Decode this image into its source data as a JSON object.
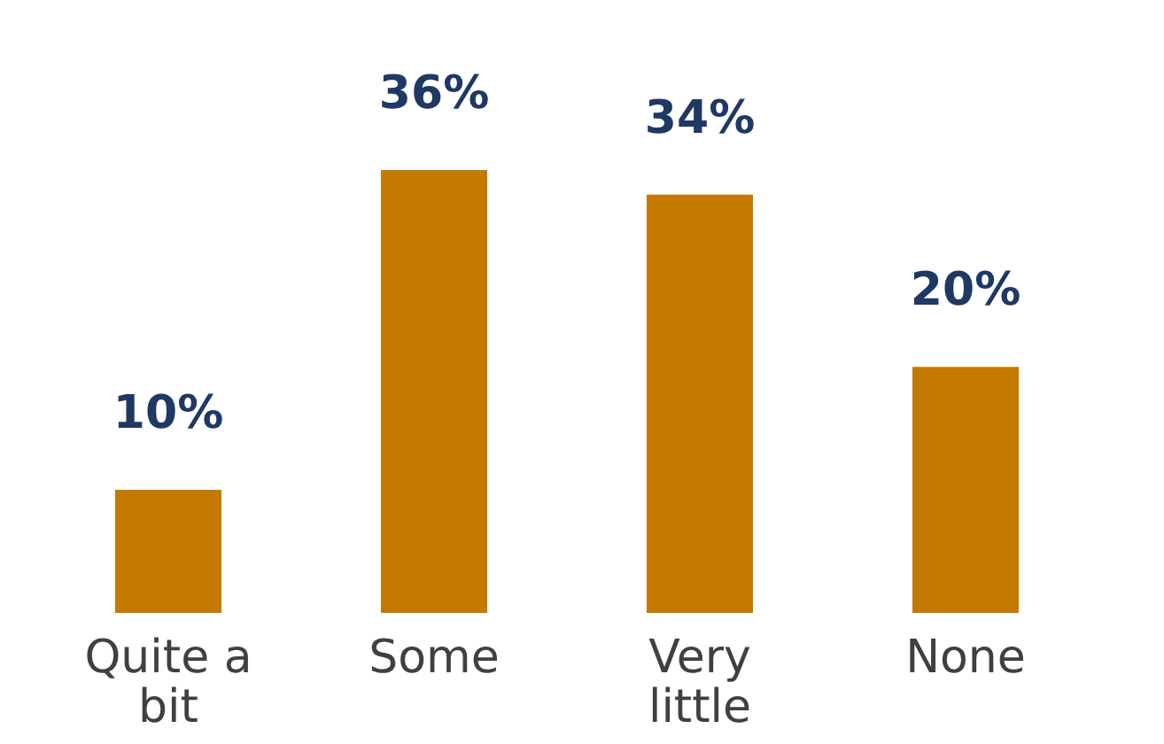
{
  "chart_data": {
    "type": "bar",
    "categories": [
      "Quite a bit",
      "Some",
      "Very little",
      "None"
    ],
    "values": [
      10,
      36,
      34,
      20
    ],
    "value_labels": [
      "10%",
      "36%",
      "34%",
      "20%"
    ],
    "color": "#c47a00"
  }
}
